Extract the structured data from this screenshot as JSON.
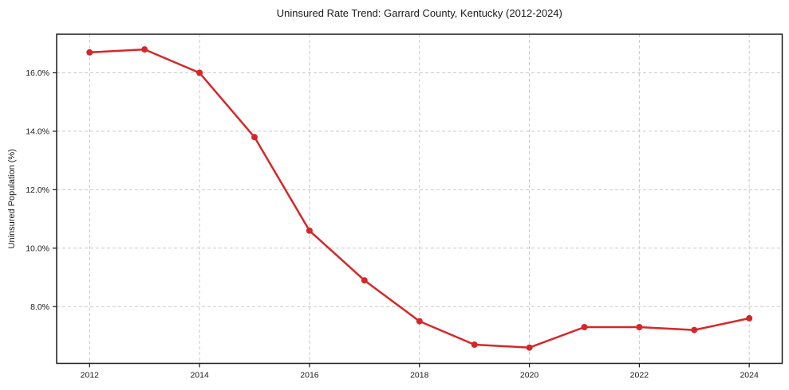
{
  "chart_data": {
    "type": "line",
    "title": "Uninsured Rate Trend: Garrard County, Kentucky (2012-2024)",
    "xlabel": "",
    "ylabel": "Uninsured Population (%)",
    "x": [
      2012,
      2013,
      2014,
      2015,
      2016,
      2017,
      2018,
      2019,
      2020,
      2021,
      2022,
      2023,
      2024
    ],
    "values": [
      16.7,
      16.8,
      16.0,
      13.8,
      10.6,
      8.9,
      7.5,
      6.7,
      6.6,
      7.3,
      7.3,
      7.2,
      7.6
    ],
    "xlim": [
      2011.4,
      2024.6
    ],
    "ylim": [
      6.06,
      17.32
    ],
    "x_ticks": [
      2012,
      2014,
      2016,
      2018,
      2020,
      2022,
      2024
    ],
    "x_tick_labels": [
      "2012",
      "2014",
      "2016",
      "2018",
      "2020",
      "2022",
      "2024"
    ],
    "y_ticks": [
      8,
      10,
      12,
      14,
      16
    ],
    "y_tick_labels": [
      "8.0%",
      "10.0%",
      "12.0%",
      "14.0%",
      "16.0%"
    ],
    "grid": true,
    "grid_style": "dashed",
    "legend_position": "none",
    "line_color": "#d62728",
    "marker_color": "#d62728",
    "grid_color": "#c9c9c9",
    "axis_color": "#1a1a1a",
    "background_color": "#ffffff"
  }
}
